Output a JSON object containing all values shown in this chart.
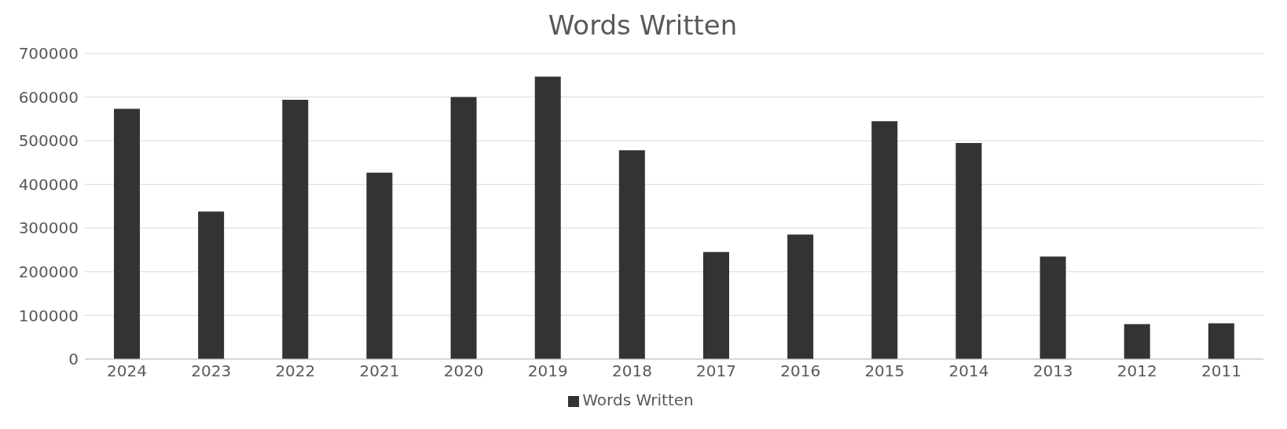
{
  "chart_data": {
    "type": "bar",
    "title": "Words Written",
    "categories": [
      "2024",
      "2023",
      "2022",
      "2021",
      "2020",
      "2019",
      "2018",
      "2017",
      "2016",
      "2015",
      "2014",
      "2013",
      "2012",
      "2011"
    ],
    "series": [
      {
        "name": "Words Written",
        "color": "#333333",
        "values": [
          573000,
          338000,
          594000,
          427000,
          600000,
          647000,
          478000,
          245000,
          285000,
          545000,
          495000,
          235000,
          80000,
          82000
        ]
      }
    ],
    "ylim": [
      0,
      700000
    ],
    "yticks": [
      0,
      100000,
      200000,
      300000,
      400000,
      500000,
      600000,
      700000
    ],
    "grid": "y",
    "legend": "bottom"
  }
}
